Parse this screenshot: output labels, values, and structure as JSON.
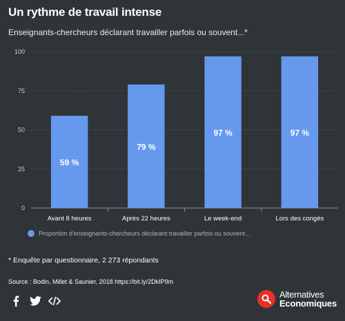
{
  "header": {
    "title": "Un rythme de travail intense",
    "subtitle": "Enseignants-chercheurs déclarant travailler parfois ou souvent...*"
  },
  "chart_data": {
    "type": "bar",
    "categories": [
      "Avant 8 heures",
      "Après 22 heures",
      "Le week-end",
      "Lors des congés"
    ],
    "series": [
      {
        "name": "Proportion d'enseignants-chercheurs déclarant travailler parfois ou souvent...",
        "values": [
          59,
          79,
          97,
          97
        ],
        "data_labels": [
          "59 %",
          "79 %",
          "97 %",
          "97 %"
        ]
      }
    ],
    "ylim": [
      0,
      100
    ],
    "yticks": [
      0,
      25,
      50,
      75,
      100
    ],
    "grid": true,
    "legend_position": "bottom-left",
    "bar_color": "#6699ee"
  },
  "footer": {
    "note": "* Enquête par questionnaire, 2 273 répondants",
    "source": "Source : Bodin, Millet & Saunier, 2018 https://bit.ly/2DkIP9m"
  },
  "share": {
    "icons": [
      "facebook-icon",
      "twitter-icon",
      "embed-code-icon"
    ]
  },
  "brand": {
    "line1": "Alternatives",
    "line2": "Economiques",
    "color": "#e8302b"
  }
}
